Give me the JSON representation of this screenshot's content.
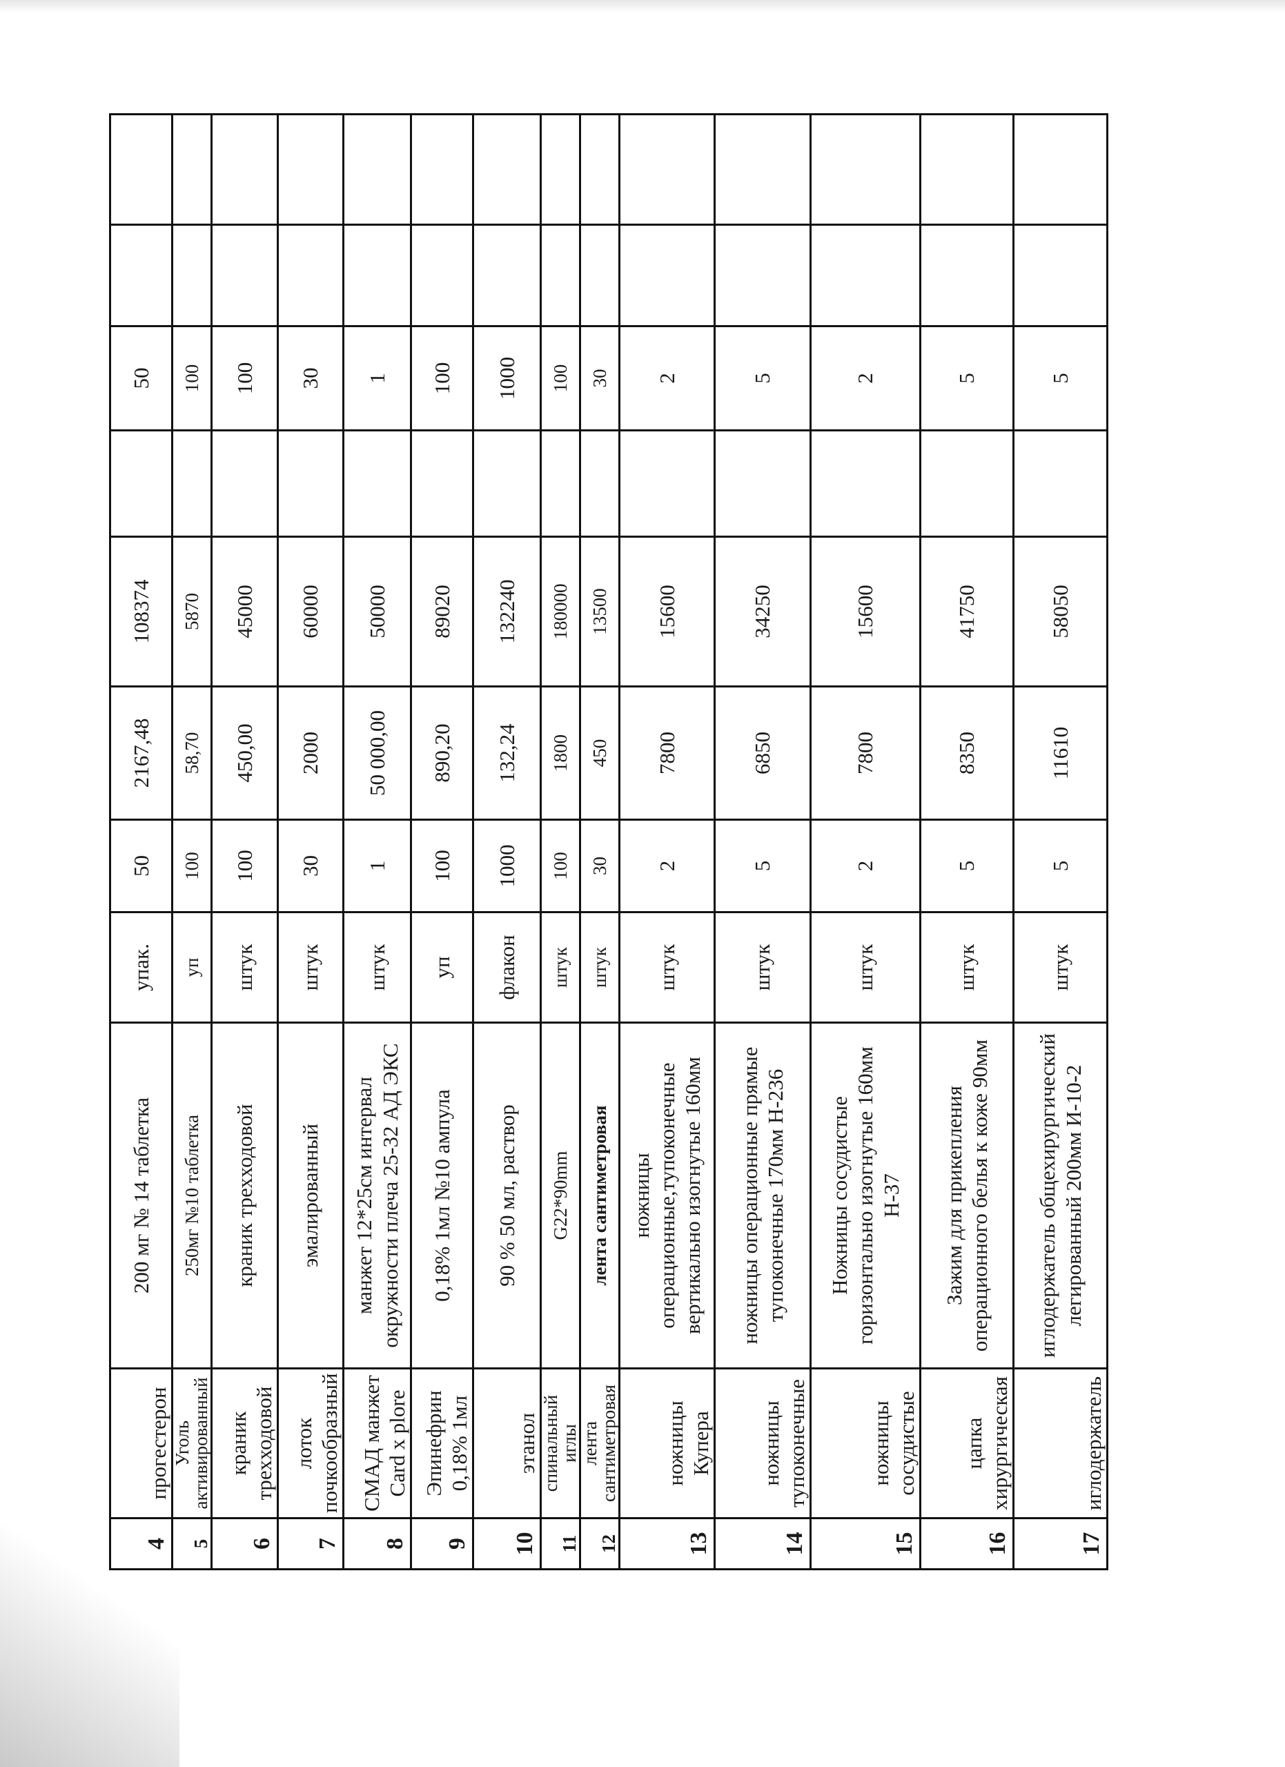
{
  "rows": [
    {
      "no": "4",
      "name": "прогестерон",
      "desc": "200 мг № 14 таблетка",
      "unit": "упак.",
      "qty": "50",
      "price": "2167,48",
      "sum": "108374",
      "qty2": "50"
    },
    {
      "no": "5",
      "name": "Уголь активированный",
      "desc": "250мг №10 таблетка",
      "unit": "уп",
      "qty": "100",
      "price": "58,70",
      "sum": "5870",
      "qty2": "100"
    },
    {
      "no": "6",
      "name": "краник трехходовой",
      "desc": "краник трехходовой",
      "unit": "штук",
      "qty": "100",
      "price": "450,00",
      "sum": "45000",
      "qty2": "100"
    },
    {
      "no": "7",
      "name": "лоток почкообразный",
      "desc": "эмалированный",
      "unit": "штук",
      "qty": "30",
      "price": "2000",
      "sum": "60000",
      "qty2": "30"
    },
    {
      "no": "8",
      "name": "СМАД манжет Card x plore",
      "desc": "манжет 12*25см интервал окружности плеча 25-32 АД ЭКС",
      "unit": "штук",
      "qty": "1",
      "price": "50 000,00",
      "sum": "50000",
      "qty2": "1"
    },
    {
      "no": "9",
      "name": "Эпинефрин 0,18% 1мл",
      "desc": "0,18% 1мл №10 ампула",
      "unit": "уп",
      "qty": "100",
      "price": "890,20",
      "sum": "89020",
      "qty2": "100"
    },
    {
      "no": "10",
      "name": "этанол",
      "desc": "90 % 50 мл, раствор",
      "unit": "флакон",
      "qty": "1000",
      "price": "132,24",
      "sum": "132240",
      "qty2": "1000"
    },
    {
      "no": "11",
      "name": "спинальный иглы",
      "desc": "G22*90mm",
      "unit": "штук",
      "qty": "100",
      "price": "1800",
      "sum": "180000",
      "qty2": "100"
    },
    {
      "no": "12",
      "name": "лента сантиметровая",
      "desc": "лента сантиметровая",
      "unit": "штук",
      "qty": "30",
      "price": "450",
      "sum": "13500",
      "qty2": "30"
    },
    {
      "no": "13",
      "name": "ножницы Купера",
      "desc": "ножницы операционные,тупоконечные вертикально изогнутые 160мм",
      "unit": "штук",
      "qty": "2",
      "price": "7800",
      "sum": "15600",
      "qty2": "2"
    },
    {
      "no": "14",
      "name": "ножницы тупоконечные",
      "desc": "ножницы операционные прямые тупоконечные 170мм Н-236",
      "unit": "штук",
      "qty": "5",
      "price": "6850",
      "sum": "34250",
      "qty2": "5"
    },
    {
      "no": "15",
      "name": "ножницы сосудистые",
      "desc": "Ножницы сосудистые горизонтально изогнутые 160мм Н-37",
      "unit": "штук",
      "qty": "2",
      "price": "7800",
      "sum": "15600",
      "qty2": "2"
    },
    {
      "no": "16",
      "name": "цапка хирургическая",
      "desc": "Зажим для прикепления операционного белья к коже 90мм",
      "unit": "штук",
      "qty": "5",
      "price": "8350",
      "sum": "41750",
      "qty2": "5"
    },
    {
      "no": "17",
      "name": "иглодержатель",
      "desc": "иглодержатель общехирургический легированный 200мм И-10-2",
      "unit": "штук",
      "qty": "5",
      "price": "11610",
      "sum": "58050",
      "qty2": "5"
    }
  ]
}
